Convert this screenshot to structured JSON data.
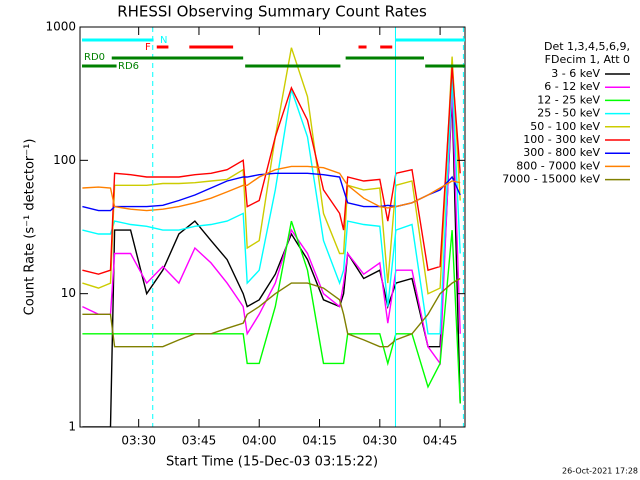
{
  "chart_data": {
    "type": "line",
    "title": "RHESSI Observing Summary Count Rates",
    "x_label": "Start Time (15-Dec-03 03:15:22)",
    "y_label": "Count Rate (s⁻¹ detector⁻¹)",
    "footer": "26-Oct-2021 17:28",
    "legend_title": [
      "Det 1,3,4,5,6,9,",
      "FDecim 1, Att 0"
    ],
    "log_y": true,
    "xlim": [
      195.4,
      291.2
    ],
    "xticks": [
      {
        "value": 210,
        "label": "03:30"
      },
      {
        "value": 225,
        "label": "03:45"
      },
      {
        "value": 240,
        "label": "04:00"
      },
      {
        "value": 255,
        "label": "04:15"
      },
      {
        "value": 270,
        "label": "04:30"
      },
      {
        "value": 285,
        "label": "04:45"
      }
    ],
    "ylim": [
      1,
      1000
    ],
    "yticks": [
      1,
      10,
      100,
      1000
    ],
    "x": [
      196,
      200,
      203,
      204,
      208,
      212,
      216,
      220,
      224,
      228,
      232,
      236,
      237,
      240,
      244,
      248,
      252,
      256,
      260,
      261,
      262,
      266,
      270,
      272,
      274,
      278,
      282,
      285,
      288,
      290
    ],
    "series": [
      {
        "name": "3 - 6 keV",
        "color": "#000000",
        "values": [
          1,
          1,
          1,
          30,
          30,
          10,
          15,
          28,
          35,
          25,
          18,
          10,
          8,
          9,
          14,
          28,
          18,
          9,
          8,
          10,
          20,
          13,
          15,
          8,
          12,
          13,
          4,
          4,
          300,
          1.5
        ]
      },
      {
        "name": "6 - 12 keV",
        "color": "#ff00ff",
        "values": [
          8,
          7,
          7,
          20,
          20,
          12,
          16,
          12,
          22,
          17,
          12,
          8,
          5,
          7,
          12,
          30,
          20,
          10,
          8,
          12,
          20,
          14,
          17,
          6,
          15,
          15,
          4,
          3,
          350,
          5
        ]
      },
      {
        "name": "12 - 25 keV",
        "color": "#00ff00",
        "values": [
          5,
          5,
          5,
          5,
          5,
          5,
          5,
          5,
          5,
          5,
          5,
          5,
          3,
          3,
          8,
          35,
          15,
          3,
          3,
          3,
          5,
          5,
          5,
          3,
          5,
          5,
          2,
          3,
          30,
          1.5
        ]
      },
      {
        "name": "25 - 50 keV",
        "color": "#00ffff",
        "values": [
          30,
          28,
          28,
          35,
          33,
          32,
          30,
          30,
          32,
          33,
          35,
          40,
          12,
          15,
          60,
          340,
          150,
          25,
          12,
          15,
          35,
          33,
          32,
          8,
          30,
          33,
          5,
          5,
          420,
          20
        ]
      },
      {
        "name": "50 - 100 keV",
        "color": "#cccc00",
        "values": [
          12,
          11,
          12,
          65,
          65,
          65,
          67,
          67,
          68,
          70,
          72,
          85,
          22,
          25,
          150,
          700,
          300,
          40,
          20,
          20,
          65,
          60,
          62,
          12,
          65,
          70,
          10,
          11,
          600,
          50
        ]
      },
      {
        "name": "100 - 300 keV",
        "color": "#ff0000",
        "values": [
          15,
          14,
          15,
          80,
          78,
          75,
          75,
          75,
          78,
          80,
          85,
          100,
          45,
          50,
          150,
          350,
          200,
          60,
          40,
          30,
          75,
          70,
          72,
          35,
          80,
          85,
          15,
          16,
          500,
          80
        ]
      },
      {
        "name": "300 - 800 keV",
        "color": "#0000ff",
        "values": [
          45,
          42,
          42,
          45,
          45,
          45,
          46,
          50,
          55,
          62,
          70,
          75,
          75,
          78,
          80,
          80,
          80,
          78,
          75,
          60,
          48,
          45,
          45,
          46,
          45,
          48,
          55,
          60,
          75,
          55
        ]
      },
      {
        "name": "800 - 7000 keV",
        "color": "#ff8000",
        "values": [
          62,
          63,
          62,
          45,
          43,
          42,
          43,
          45,
          48,
          52,
          58,
          65,
          65,
          75,
          85,
          90,
          90,
          88,
          80,
          72,
          65,
          52,
          45,
          44,
          45,
          48,
          55,
          62,
          70,
          68
        ]
      },
      {
        "name": "7000 - 15000 keV",
        "color": "#808000",
        "values": [
          7,
          7,
          7,
          4,
          4,
          4,
          4,
          4.5,
          5,
          5,
          5.5,
          6,
          7,
          8,
          10,
          12,
          12,
          11,
          9,
          7,
          5,
          4.5,
          4,
          4,
          4.5,
          5,
          7,
          10,
          12,
          13
        ]
      }
    ],
    "flags": [
      {
        "label": "N",
        "color": "#00ffff",
        "segments": [
          [
            195.9,
            213.7
          ],
          [
            273.9,
            291.2
          ]
        ]
      },
      {
        "label": "F",
        "color": "#ff0000",
        "segments": [
          [
            214.5,
            217.4
          ],
          [
            222.6,
            233.5
          ],
          [
            264.7,
            266.7
          ],
          [
            270.1,
            273.1
          ]
        ]
      },
      {
        "label": "RD0",
        "color": "#008000",
        "segments": [
          [
            203.3,
            236.0
          ],
          [
            261.5,
            281.0
          ]
        ]
      },
      {
        "label": "RD6",
        "color": "#008000",
        "segments": [
          [
            195.9,
            204.5
          ],
          [
            236.5,
            260.2
          ],
          [
            281.3,
            291.2
          ]
        ]
      }
    ],
    "vlines": [
      213.5,
      273.9,
      290.8
    ],
    "vline_color": "#00ffff"
  }
}
